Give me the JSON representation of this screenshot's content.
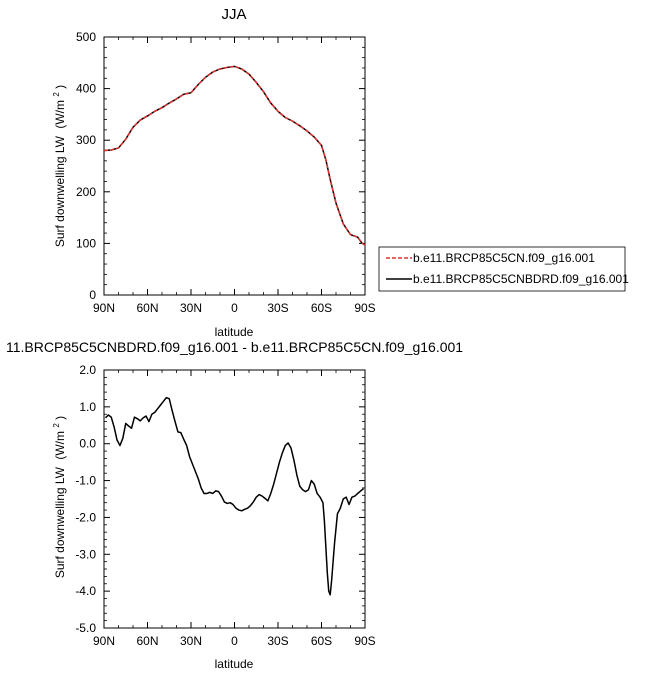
{
  "chart_data": [
    {
      "type": "line",
      "title": "JJA",
      "ylabel": "Surf downwelling LW",
      "yunit_prefix": "(W/m",
      "yunit_sup": "2",
      "yunit_suffix": ")",
      "xlabel": "latitude",
      "xlim": [
        90,
        -90
      ],
      "ylim": [
        0,
        500
      ],
      "x_ticks": [
        90,
        60,
        30,
        0,
        -30,
        -60,
        -90
      ],
      "x_tick_labels": [
        "90N",
        "60N",
        "30N",
        "0",
        "30S",
        "60S",
        "90S"
      ],
      "y_ticks": [
        0,
        100,
        200,
        300,
        400,
        500
      ],
      "y_tick_labels": [
        "0",
        "100",
        "200",
        "300",
        "400",
        "500"
      ],
      "legend_position": "right",
      "series": [
        {
          "name": "b.e11.BRCP85C5CN.f09_g16.001",
          "color": "#e0302c",
          "dash": true,
          "x": [
            90,
            85,
            80,
            75,
            70,
            65,
            60,
            55,
            50,
            45,
            40,
            35,
            30,
            25,
            20,
            15,
            10,
            5,
            0,
            -5,
            -10,
            -15,
            -20,
            -25,
            -30,
            -35,
            -40,
            -45,
            -50,
            -55,
            -60,
            -63,
            -66,
            -70,
            -75,
            -80,
            -85,
            -88,
            -90
          ],
          "y": [
            280,
            281,
            285,
            302,
            325,
            339,
            347,
            356,
            363,
            372,
            380,
            389,
            392,
            408,
            422,
            432,
            438,
            441,
            443,
            438,
            428,
            412,
            394,
            372,
            356,
            344,
            337,
            328,
            318,
            306,
            290,
            262,
            224,
            178,
            138,
            117,
            112,
            100,
            97
          ]
        },
        {
          "name": "b.e11.BRCP85C5CNBDRD.f09_g16.001",
          "color": "#000000",
          "dash": false,
          "x": [
            90,
            85,
            80,
            75,
            70,
            65,
            60,
            55,
            50,
            45,
            40,
            35,
            30,
            25,
            20,
            15,
            10,
            5,
            0,
            -5,
            -10,
            -15,
            -20,
            -25,
            -30,
            -35,
            -40,
            -45,
            -50,
            -55,
            -60,
            -63,
            -66,
            -70,
            -75,
            -80,
            -85,
            -88,
            -90
          ],
          "y": [
            280,
            281,
            285,
            302,
            325,
            339,
            347,
            356,
            363,
            372,
            380,
            389,
            392,
            408,
            422,
            432,
            438,
            441,
            443,
            438,
            428,
            412,
            394,
            372,
            356,
            344,
            337,
            328,
            318,
            306,
            290,
            262,
            224,
            178,
            138,
            117,
            112,
            100,
            97
          ]
        }
      ]
    },
    {
      "type": "line",
      "title": "11.BRCP85C5CNBDRD.f09_g16.001 - b.e11.BRCP85C5CN.f09_g16.001",
      "ylabel": "Surf downwelling LW",
      "yunit_prefix": "(W/m",
      "yunit_sup": "2",
      "yunit_suffix": ")",
      "xlabel": "latitude",
      "xlim": [
        90,
        -90
      ],
      "ylim": [
        -5,
        2
      ],
      "x_ticks": [
        90,
        60,
        30,
        0,
        -30,
        -60,
        -90
      ],
      "x_tick_labels": [
        "90N",
        "60N",
        "30N",
        "0",
        "30S",
        "60S",
        "90S"
      ],
      "y_ticks": [
        2,
        1,
        0,
        -1,
        -2,
        -3,
        -4,
        -5
      ],
      "y_tick_labels": [
        "2.0",
        "1.0",
        "0.0",
        "-1.0",
        "-2.0",
        "-3.0",
        "-4.0",
        "-5.0"
      ],
      "series": [
        {
          "color": "#000000",
          "x": [
            89,
            87,
            85,
            83,
            81,
            79,
            77,
            75,
            73,
            71,
            69,
            67,
            65,
            63,
            61,
            59,
            57,
            55,
            53,
            51,
            49,
            47,
            45,
            43,
            41,
            39,
            37,
            35,
            33,
            31,
            29,
            27,
            25,
            23,
            21,
            19,
            17,
            15,
            13,
            11,
            9,
            7,
            5,
            3,
            1,
            -1,
            -3,
            -5,
            -7,
            -9,
            -11,
            -13,
            -15,
            -17,
            -19,
            -21,
            -23,
            -25,
            -27,
            -29,
            -31,
            -33,
            -35,
            -37,
            -39,
            -41,
            -43,
            -45,
            -47,
            -49,
            -51,
            -53,
            -55,
            -57,
            -59,
            -61,
            -62,
            -63,
            -64,
            -65,
            -66,
            -67,
            -69,
            -71,
            -73,
            -75,
            -77,
            -79,
            -81,
            -83,
            -85,
            -87,
            -89
          ],
          "y": [
            0.7,
            0.78,
            0.72,
            0.45,
            0.1,
            -0.05,
            0.15,
            0.55,
            0.48,
            0.42,
            0.72,
            0.68,
            0.62,
            0.7,
            0.75,
            0.6,
            0.8,
            0.85,
            0.95,
            1.05,
            1.15,
            1.25,
            1.22,
            0.9,
            0.6,
            0.32,
            0.3,
            0.12,
            -0.05,
            -0.35,
            -0.55,
            -0.75,
            -0.95,
            -1.2,
            -1.35,
            -1.35,
            -1.32,
            -1.35,
            -1.28,
            -1.3,
            -1.42,
            -1.58,
            -1.62,
            -1.6,
            -1.65,
            -1.75,
            -1.8,
            -1.82,
            -1.78,
            -1.75,
            -1.68,
            -1.58,
            -1.45,
            -1.38,
            -1.42,
            -1.48,
            -1.55,
            -1.35,
            -1.1,
            -0.8,
            -0.5,
            -0.25,
            -0.05,
            0.02,
            -0.12,
            -0.45,
            -0.85,
            -1.15,
            -1.25,
            -1.3,
            -1.25,
            -1.0,
            -1.1,
            -1.35,
            -1.45,
            -1.6,
            -2.1,
            -2.8,
            -3.5,
            -4.0,
            -4.1,
            -3.7,
            -2.7,
            -1.9,
            -1.75,
            -1.5,
            -1.45,
            -1.65,
            -1.45,
            -1.42,
            -1.35,
            -1.28,
            -1.22
          ]
        }
      ]
    }
  ]
}
